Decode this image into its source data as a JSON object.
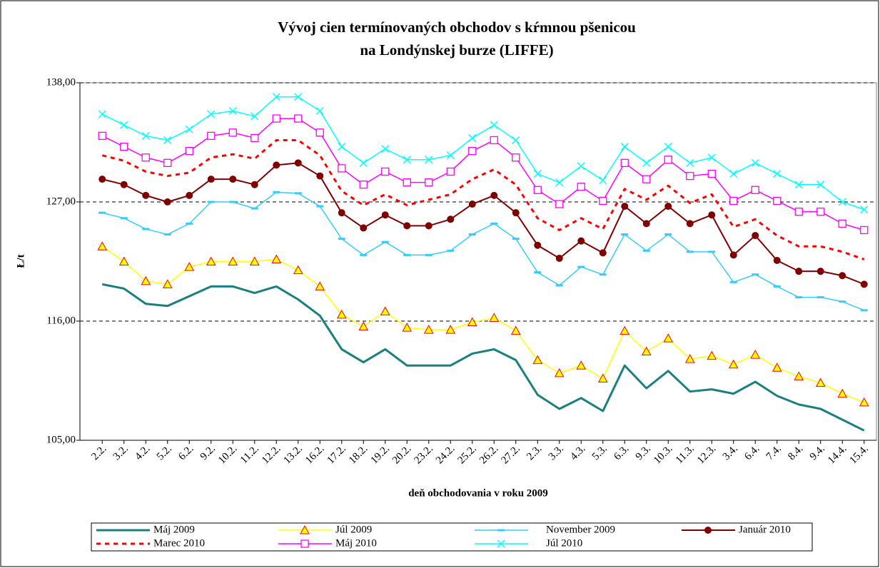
{
  "chart_data": {
    "type": "line",
    "title": "Vývoj cien termínovaných obchodov s kŕmnou pšenicou",
    "subtitle": "na Londýnskej burze (LIFFE)",
    "y_label": "Ł/t",
    "x_label": "deň obchodovania v roku 2009",
    "categories": [
      "2.2.",
      "3.2.",
      "4.2.",
      "5.2.",
      "6.2.",
      "9.2.",
      "10.2.",
      "11.2.",
      "12.2.",
      "13.2.",
      "16.2.",
      "17.2.",
      "18.2.",
      "19.2.",
      "20.2.",
      "23.2.",
      "24.2.",
      "25.2.",
      "26.2.",
      "27.2.",
      "2.3.",
      "3.3.",
      "4.3.",
      "5.3.",
      "6.3.",
      "9.3.",
      "10.3.",
      "11.3.",
      "12.3.",
      "3.4.",
      "6.4.",
      "7.4.",
      "8.4.",
      "9.4.",
      "14.4.",
      "15.4."
    ],
    "ylim": [
      105,
      138
    ],
    "yticks": [
      {
        "value": 105,
        "label": "105,00"
      },
      {
        "value": 116,
        "label": "116,00"
      },
      {
        "value": 127,
        "label": "127,00"
      },
      {
        "value": 138,
        "label": "138,00"
      }
    ],
    "grid": true,
    "legend": "bottom",
    "series": [
      {
        "name": "Máj 2009",
        "color": "#1a7f7f",
        "width": 3,
        "dash": "none",
        "marker": "none",
        "values": [
          119.4,
          119.0,
          117.6,
          117.4,
          118.3,
          119.2,
          119.2,
          118.6,
          119.2,
          118.0,
          116.5,
          113.4,
          112.2,
          113.4,
          111.9,
          111.9,
          111.9,
          113.0,
          113.4,
          112.4,
          109.2,
          107.9,
          108.9,
          107.7,
          111.9,
          109.8,
          111.4,
          109.5,
          109.7,
          109.3,
          110.4,
          109.1,
          108.3,
          107.9,
          106.9,
          105.9
        ]
      },
      {
        "name": "Júl 2009",
        "color": "#ffff00",
        "width": 1.5,
        "dash": "none",
        "marker": "triangle",
        "values": [
          122.9,
          121.5,
          119.7,
          119.4,
          121.0,
          121.5,
          121.5,
          121.5,
          121.7,
          120.7,
          119.2,
          116.6,
          115.5,
          116.9,
          115.4,
          115.2,
          115.2,
          115.9,
          116.3,
          115.1,
          112.4,
          111.2,
          111.9,
          110.7,
          115.1,
          113.2,
          114.4,
          112.5,
          112.8,
          112.0,
          112.9,
          111.7,
          110.9,
          110.3,
          109.3,
          108.5
        ]
      },
      {
        "name": "November 2009",
        "color": "#33ccff",
        "width": 1.5,
        "dash": "none",
        "marker": "dash",
        "values": [
          126.0,
          125.5,
          124.5,
          124.0,
          125.0,
          127.0,
          127.0,
          126.4,
          127.9,
          127.8,
          126.6,
          123.6,
          122.1,
          123.3,
          122.1,
          122.1,
          122.5,
          124.0,
          125.0,
          123.6,
          120.5,
          119.3,
          121.0,
          120.3,
          124.0,
          122.5,
          124.0,
          122.4,
          122.4,
          119.6,
          120.3,
          119.2,
          118.2,
          118.2,
          117.8,
          117.0
        ]
      },
      {
        "name": "Január 2010",
        "color": "#800000",
        "width": 2,
        "dash": "none",
        "marker": "circle",
        "values": [
          129.1,
          128.6,
          127.6,
          127.0,
          127.6,
          129.1,
          129.1,
          128.6,
          130.4,
          130.6,
          129.4,
          126.0,
          124.6,
          125.8,
          124.8,
          124.8,
          125.4,
          126.8,
          127.6,
          126.0,
          123.0,
          121.8,
          123.4,
          122.3,
          126.6,
          125.0,
          126.6,
          125.0,
          125.8,
          122.1,
          123.9,
          121.6,
          120.6,
          120.6,
          120.2,
          119.4
        ]
      },
      {
        "name": "Marec 2010",
        "color": "#ff0000",
        "width": 3,
        "dash": "6 6",
        "marker": "none",
        "values": [
          131.3,
          130.8,
          129.8,
          129.4,
          129.7,
          131.1,
          131.4,
          131.0,
          132.7,
          132.7,
          131.3,
          128.0,
          126.7,
          127.7,
          126.7,
          127.2,
          127.7,
          129.1,
          130.0,
          128.6,
          125.5,
          124.4,
          125.5,
          124.5,
          128.2,
          127.2,
          128.5,
          126.9,
          127.7,
          124.7,
          125.4,
          123.9,
          122.9,
          122.9,
          122.4,
          121.7
        ]
      },
      {
        "name": "Máj 2010",
        "color": "#ff00ff",
        "width": 1.5,
        "dash": "none",
        "marker": "square",
        "values": [
          133.1,
          132.1,
          131.1,
          130.6,
          131.7,
          133.1,
          133.4,
          132.9,
          134.7,
          134.7,
          133.4,
          130.1,
          128.6,
          129.8,
          128.8,
          128.8,
          129.8,
          131.7,
          132.7,
          131.1,
          128.1,
          126.8,
          128.4,
          127.1,
          130.6,
          129.1,
          130.9,
          129.4,
          129.6,
          127.1,
          128.1,
          127.1,
          126.1,
          126.1,
          125.0,
          124.4
        ]
      },
      {
        "name": "Júl 2010",
        "color": "#00ffff",
        "width": 1.5,
        "dash": "none",
        "marker": "x",
        "values": [
          135.1,
          134.1,
          133.1,
          132.7,
          133.7,
          135.1,
          135.4,
          134.9,
          136.7,
          136.7,
          135.4,
          132.1,
          130.6,
          131.9,
          130.9,
          130.9,
          131.3,
          132.9,
          134.1,
          132.7,
          129.6,
          128.8,
          130.3,
          129.0,
          132.1,
          130.6,
          132.1,
          130.6,
          131.1,
          129.6,
          130.6,
          129.6,
          128.6,
          128.6,
          127.0,
          126.3
        ]
      }
    ]
  }
}
